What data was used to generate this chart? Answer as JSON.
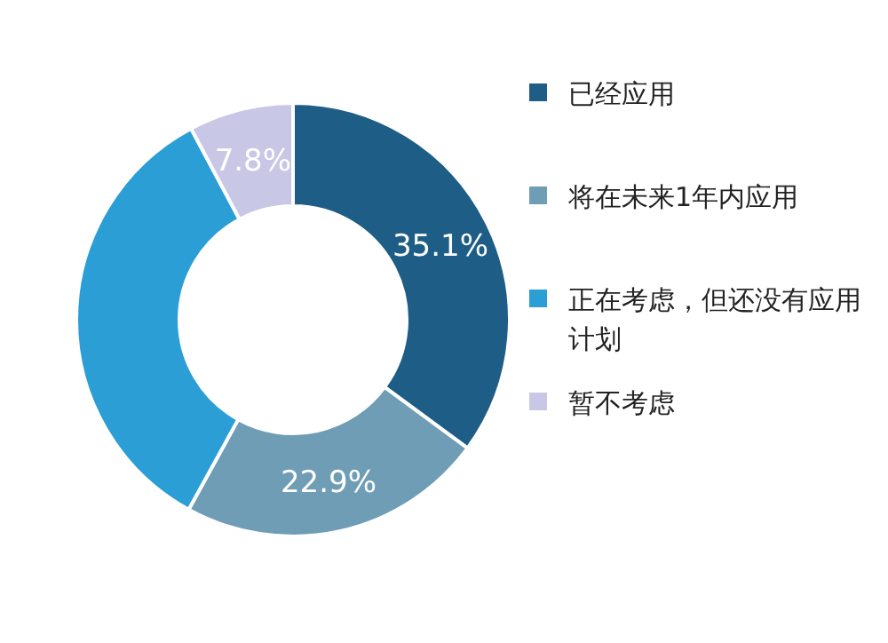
{
  "chart_data": {
    "type": "donut",
    "categories": [
      "已经应用",
      "将在未来1年内应用",
      "正在考虑，但还没有应用计划",
      "暂不考虑"
    ],
    "values": [
      35.1,
      22.9,
      34.2,
      7.8
    ],
    "colors": [
      "#1e5d86",
      "#6e9db5",
      "#2b9ed6",
      "#c8c7e6"
    ],
    "value_labels": [
      "35.1%",
      "22.9%",
      null,
      "7.8%"
    ],
    "legend": "right"
  }
}
